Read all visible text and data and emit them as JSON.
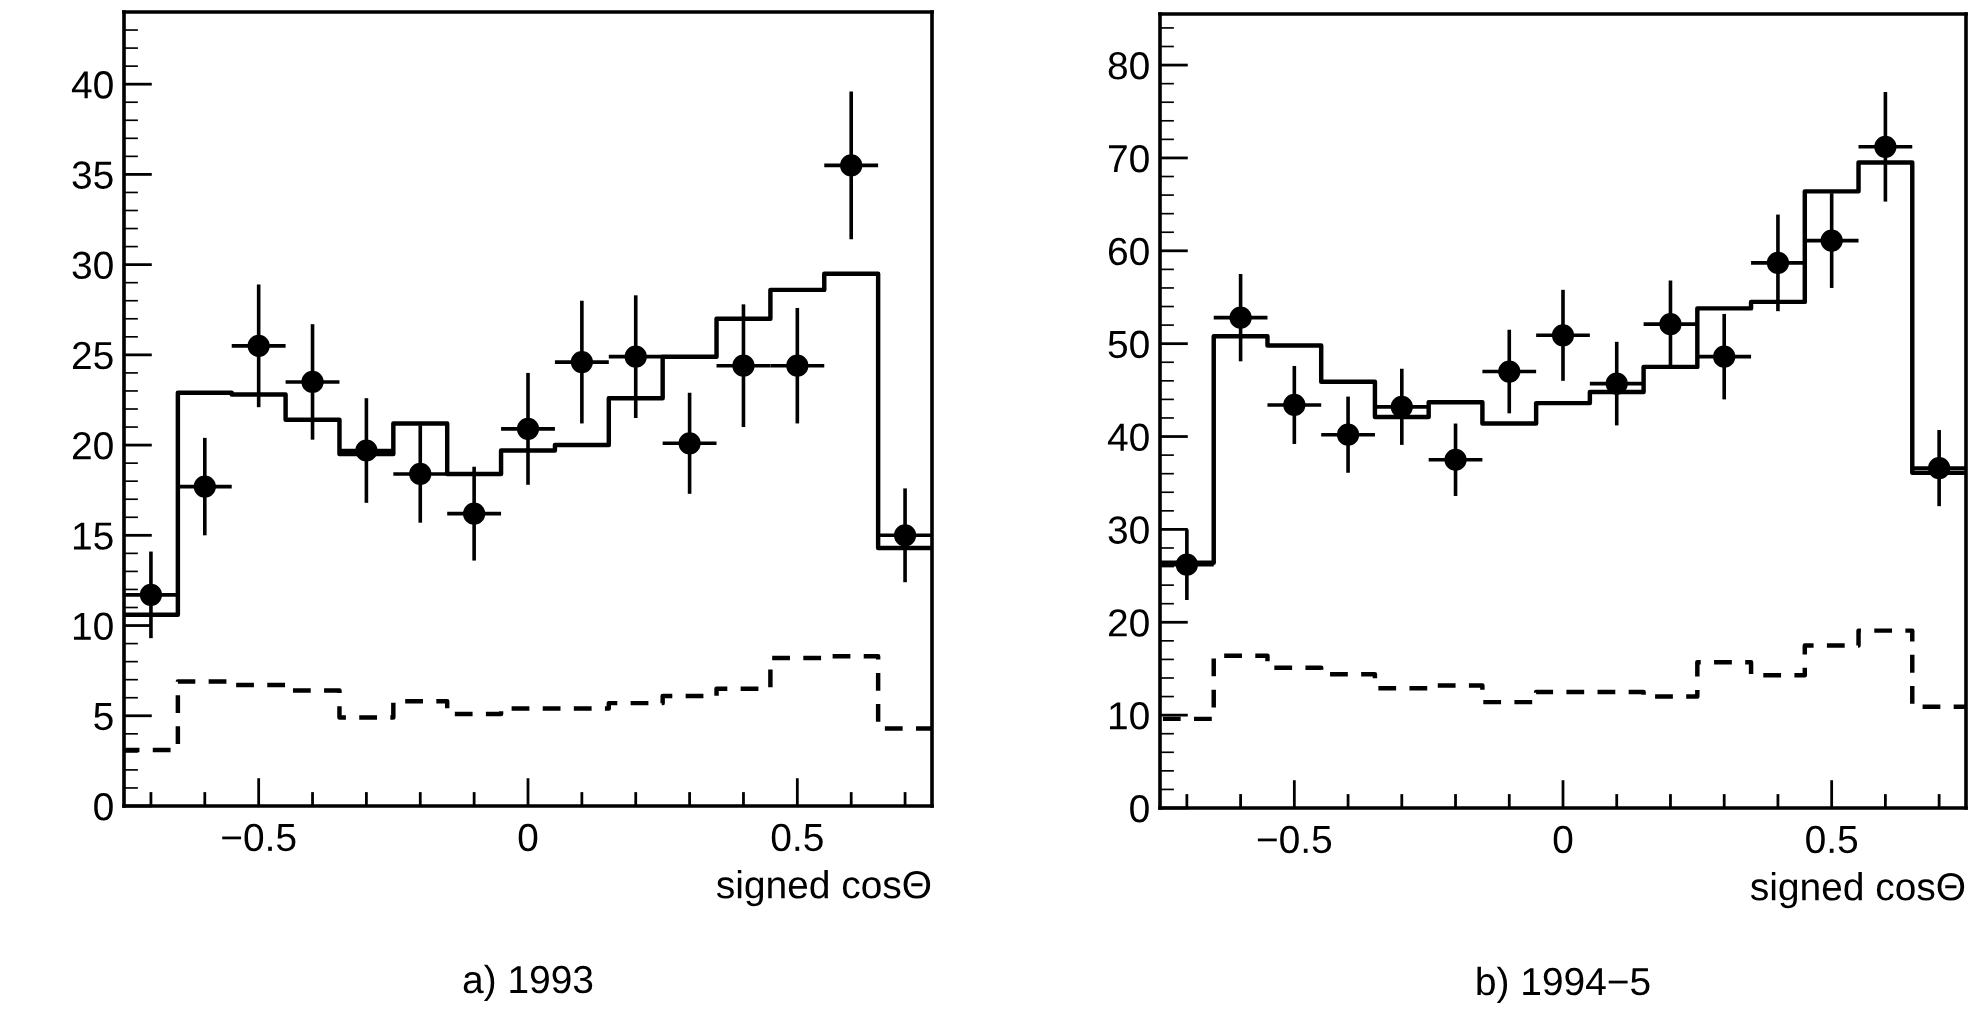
{
  "chart_data": [
    {
      "type": "scatter",
      "title": "a) 1993",
      "xlabel": "signed cosΘ",
      "grid": false,
      "legend": false,
      "xlim": [
        -0.75,
        0.75
      ],
      "ylim": [
        0,
        44
      ],
      "xticks": [
        {
          "value": -0.7,
          "label": null
        },
        {
          "value": -0.6,
          "label": null
        },
        {
          "value": -0.5,
          "label": "−0.5"
        },
        {
          "value": -0.4,
          "label": null
        },
        {
          "value": -0.3,
          "label": null
        },
        {
          "value": -0.2,
          "label": null
        },
        {
          "value": -0.1,
          "label": null
        },
        0,
        {
          "value": 0.1,
          "label": null
        },
        {
          "value": 0.2,
          "label": null
        },
        {
          "value": 0.3,
          "label": null
        },
        {
          "value": 0.4,
          "label": null
        },
        0.5,
        {
          "value": 0.6,
          "label": null
        },
        {
          "value": 0.7,
          "label": null
        }
      ],
      "yticks": [
        0,
        5,
        10,
        15,
        20,
        25,
        30,
        35,
        40
      ],
      "x": [
        -0.7,
        -0.6,
        -0.5,
        -0.4,
        -0.3,
        -0.2,
        -0.1,
        0,
        0.1,
        0.2,
        0.3,
        0.4,
        0.5,
        0.6,
        0.7
      ],
      "series": [
        {
          "type": "step",
          "color": "#000000",
          "line_style": "solid",
          "values": [
            10.6,
            22.9,
            22.8,
            21.4,
            19.5,
            21.2,
            18.4,
            19.7,
            20.0,
            22.6,
            24.9,
            27.0,
            28.6,
            29.5,
            14.3
          ]
        },
        {
          "type": "step",
          "color": "#000000",
          "line_style": "dashed",
          "values": [
            3.1,
            6.9,
            6.7,
            6.4,
            4.9,
            5.8,
            5.1,
            5.4,
            5.4,
            5.7,
            6.1,
            6.5,
            8.2,
            8.3,
            4.3
          ]
        },
        {
          "type": "scatter",
          "marker": "circle",
          "color": "#000000",
          "values": [
            11.7,
            17.7,
            25.5,
            23.5,
            19.7,
            18.4,
            16.2,
            20.9,
            24.6,
            24.9,
            20.1,
            24.4,
            24.4,
            35.5,
            15.0
          ],
          "errors": [
            2.4,
            2.7,
            3.4,
            3.2,
            2.9,
            2.7,
            2.6,
            3.1,
            3.4,
            3.4,
            2.8,
            3.4,
            3.2,
            4.1,
            2.6
          ],
          "xerrors": [
            0.05,
            0.05,
            0.05,
            0.05,
            0.05,
            0.05,
            0.05,
            0.05,
            0.05,
            0.05,
            0.05,
            0.05,
            0.05,
            0.05,
            0.05
          ]
        }
      ]
    },
    {
      "type": "scatter",
      "title": "b) 1994−5",
      "xlabel": "signed cosΘ",
      "grid": false,
      "legend": false,
      "xlim": [
        -0.75,
        0.75
      ],
      "ylim": [
        0,
        85.5
      ],
      "xticks": [
        {
          "value": -0.7,
          "label": null
        },
        {
          "value": -0.6,
          "label": null
        },
        {
          "value": -0.5,
          "label": "−0.5"
        },
        {
          "value": -0.4,
          "label": null
        },
        {
          "value": -0.3,
          "label": null
        },
        {
          "value": -0.2,
          "label": null
        },
        {
          "value": -0.1,
          "label": null
        },
        0,
        {
          "value": 0.1,
          "label": null
        },
        {
          "value": 0.2,
          "label": null
        },
        {
          "value": 0.3,
          "label": null
        },
        {
          "value": 0.4,
          "label": null
        },
        0.5,
        {
          "value": 0.6,
          "label": null
        },
        {
          "value": 0.7,
          "label": null
        }
      ],
      "yticks": [
        0,
        10,
        20,
        30,
        40,
        50,
        60,
        70,
        80
      ],
      "x": [
        -0.7,
        -0.6,
        -0.5,
        -0.4,
        -0.3,
        -0.2,
        -0.1,
        0,
        0.1,
        0.2,
        0.3,
        0.4,
        0.5,
        0.6,
        0.7
      ],
      "series": [
        {
          "type": "step",
          "color": "#000000",
          "line_style": "solid",
          "values": [
            26.4,
            50.8,
            49.8,
            45.9,
            42.1,
            43.7,
            41.4,
            43.6,
            44.8,
            47.5,
            53.8,
            54.5,
            66.4,
            69.5,
            36.1
          ]
        },
        {
          "type": "step",
          "color": "#000000",
          "line_style": "dashed",
          "values": [
            9.6,
            16.4,
            15.1,
            14.4,
            12.9,
            13.2,
            11.4,
            12.5,
            12.5,
            12.0,
            15.7,
            14.3,
            17.5,
            19.1,
            10.9
          ]
        },
        {
          "type": "scatter",
          "marker": "circle",
          "color": "#000000",
          "values": [
            26.2,
            52.8,
            43.4,
            40.2,
            43.2,
            37.5,
            47.0,
            50.9,
            45.7,
            52.1,
            48.6,
            58.7,
            61.1,
            71.2,
            36.6
          ],
          "errors": [
            3.8,
            4.7,
            4.2,
            4.1,
            4.1,
            3.9,
            4.5,
            4.9,
            4.5,
            4.7,
            4.6,
            5.2,
            5.1,
            5.9,
            4.1
          ],
          "xerrors": [
            0.05,
            0.05,
            0.05,
            0.05,
            0.05,
            0.05,
            0.05,
            0.05,
            0.05,
            0.05,
            0.05,
            0.05,
            0.05,
            0.05,
            0.05
          ]
        }
      ]
    }
  ]
}
